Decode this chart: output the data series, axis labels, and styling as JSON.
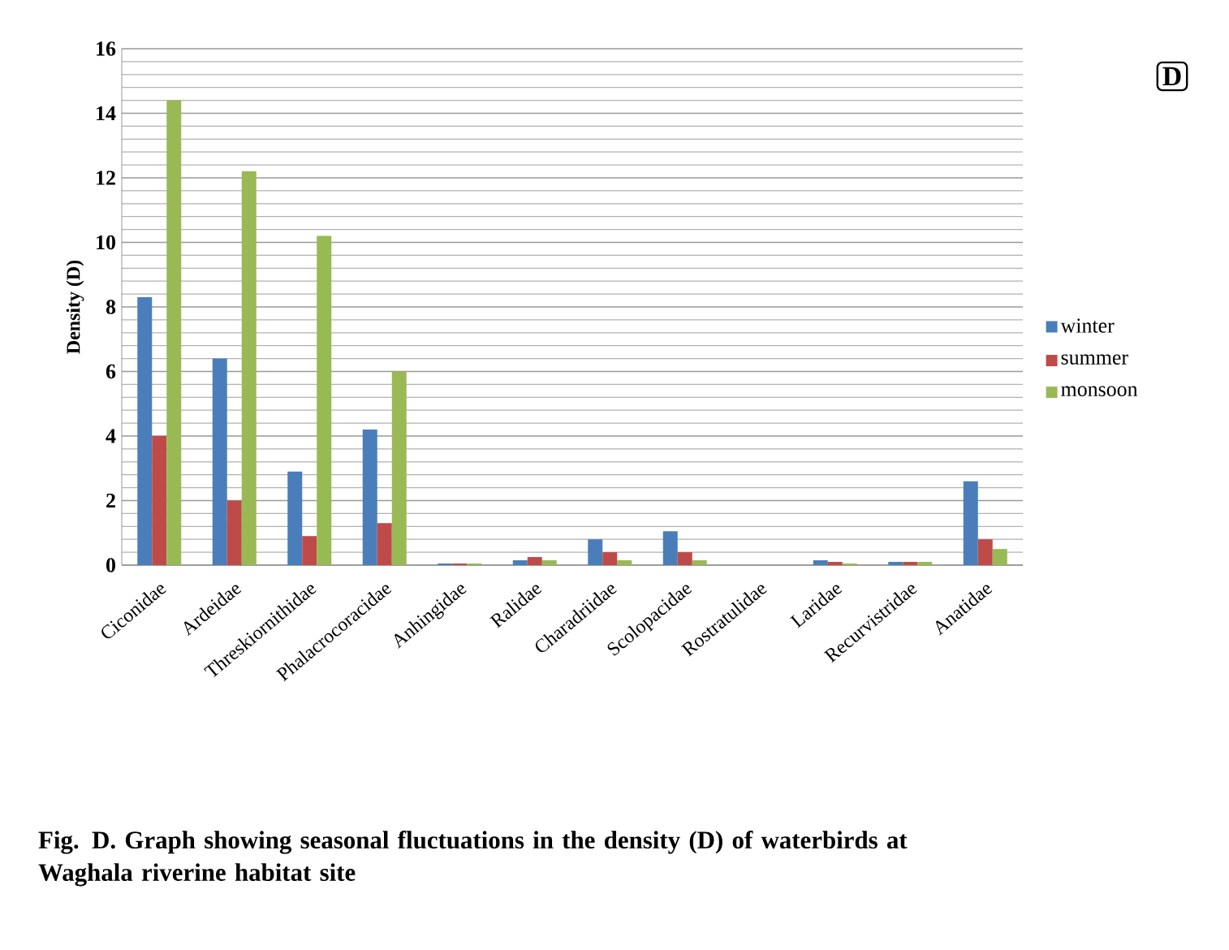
{
  "chart_data": {
    "type": "bar",
    "ylabel": "Density (D)",
    "categories": [
      "Ciconidae",
      "Ardeidae",
      "Threskiornithidae",
      "Phalacrocoracidae",
      "Anhingidae",
      "Ralidae",
      "Charadriidae",
      "Scolopacidae",
      "Rostratulidae",
      "Laridae",
      "Recurvistridae",
      "Anatidae"
    ],
    "series": [
      {
        "name": "winter",
        "color": "#4a7ebb",
        "values": [
          8.3,
          6.4,
          2.9,
          4.2,
          0.05,
          0.15,
          0.8,
          1.05,
          0,
          0.15,
          0.1,
          2.6
        ]
      },
      {
        "name": "summer",
        "color": "#be4b48",
        "values": [
          4.0,
          2.0,
          0.9,
          1.3,
          0.05,
          0.25,
          0.4,
          0.4,
          0,
          0.1,
          0.1,
          0.8
        ]
      },
      {
        "name": "monsoon",
        "color": "#98b954",
        "values": [
          14.4,
          12.2,
          10.2,
          6.0,
          0.05,
          0.15,
          0.15,
          0.15,
          0,
          0.05,
          0.1,
          0.5
        ]
      }
    ],
    "ylim": [
      0,
      16
    ],
    "yticks": [
      0,
      2,
      4,
      6,
      8,
      10,
      12,
      14,
      16
    ],
    "grid": "y",
    "legend": "right",
    "annotations": [
      "D",
      "Fig. D.  Graph showing seasonal fluctuations in the density (D) of waterbirds at Waghala riverine habitat site"
    ]
  }
}
